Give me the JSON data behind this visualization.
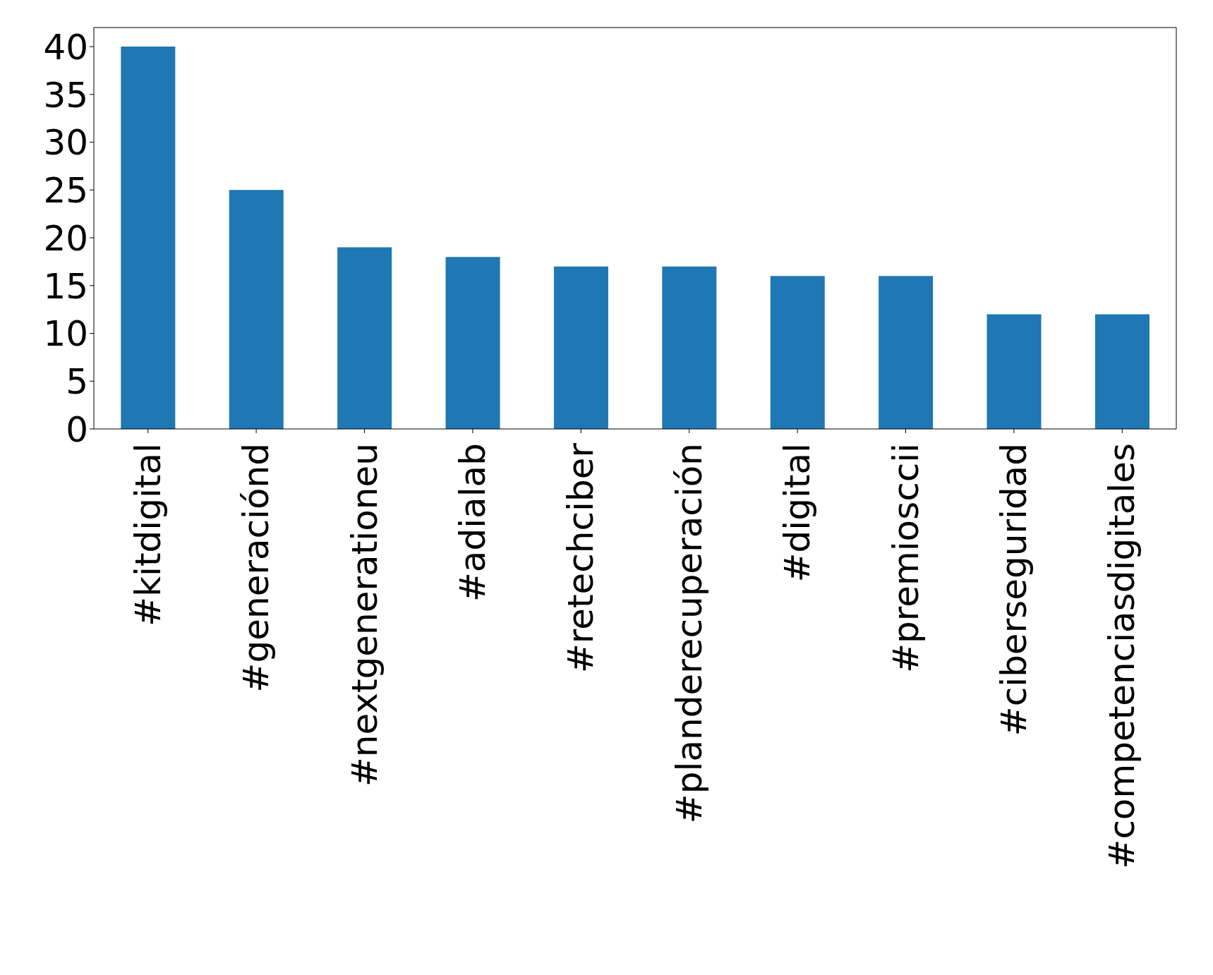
{
  "chart_data": {
    "type": "bar",
    "categories": [
      "#kitdigital",
      "#generaciónd",
      "#nextgenerationeu",
      "#adialab",
      "#retechciber",
      "#planderecuperación",
      "#digital",
      "#premiosccii",
      "#ciberseguridad",
      "#competenciasdigitales"
    ],
    "values": [
      40,
      25,
      19,
      18,
      17,
      17,
      16,
      16,
      12,
      12
    ],
    "color": "#1f77b4",
    "ylim": [
      0,
      42
    ],
    "yticks": [
      0,
      5,
      10,
      15,
      20,
      25,
      30,
      35,
      40
    ],
    "grid": false
  }
}
